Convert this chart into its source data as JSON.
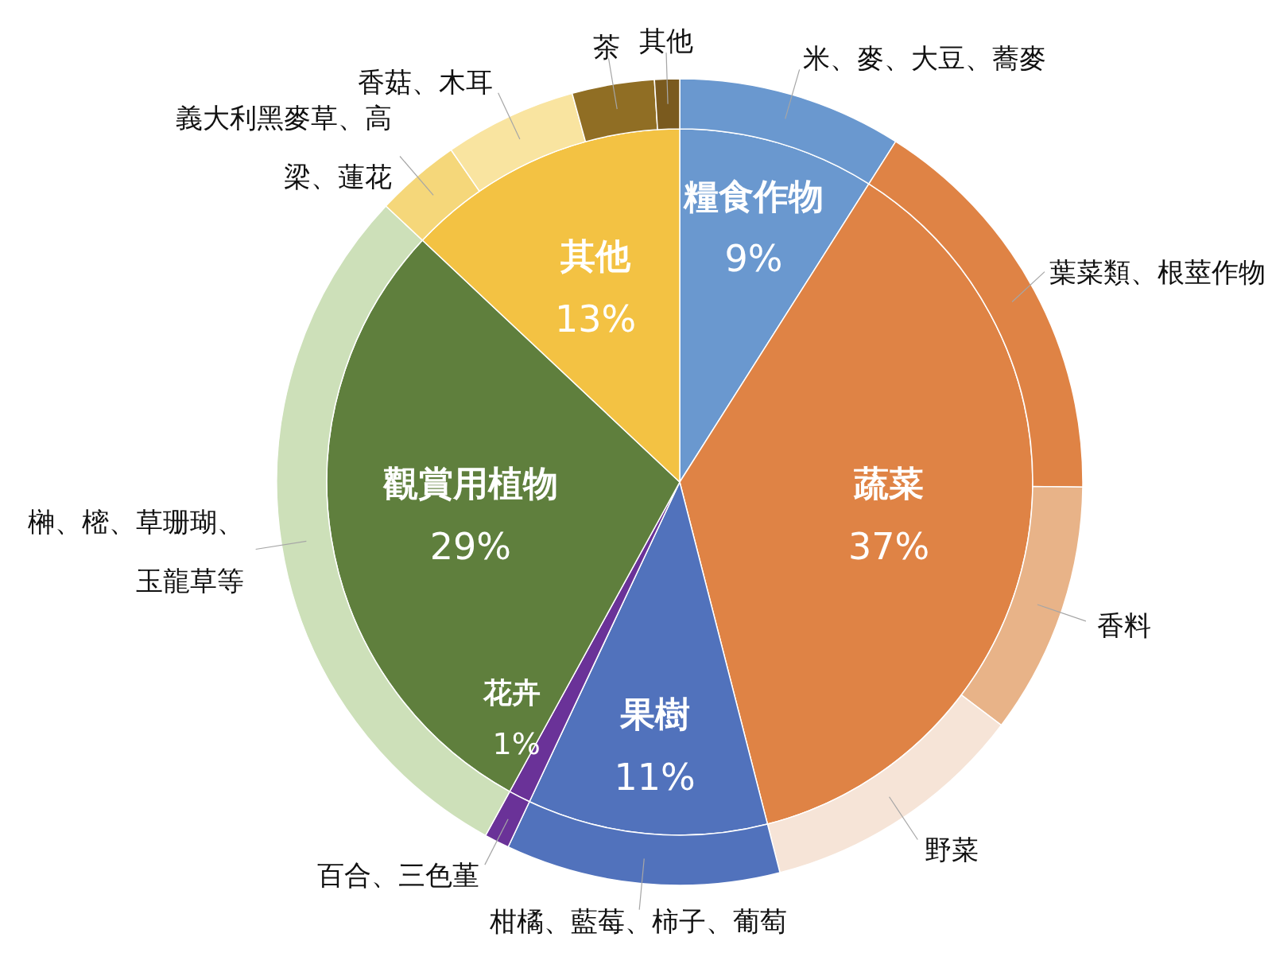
{
  "chart_data": [
    {
      "type": "pie",
      "categories": [
        "糧食作物",
        "蔬菜",
        "果樹",
        "花卉",
        "觀賞用植物",
        "其他"
      ],
      "values": [
        9,
        37,
        11,
        1,
        29,
        13
      ],
      "colors": [
        "#6a98cf",
        "#df8345",
        "#5172bc",
        "#6a3298",
        "#5f7f3d",
        "#f3c243"
      ],
      "value_labels": [
        "9%",
        "37%",
        "11%",
        "1%",
        "29%",
        "13%"
      ]
    },
    {
      "type": "donut",
      "categories": [
        "米、麥、大豆、蕎麥",
        "葉菜類、根莖作物",
        "香料",
        "野菜",
        "柑橘、藍莓、柿子、葡萄",
        "百合、三色堇",
        "榊、樒、草珊瑚、玉龍草等",
        "義大利黑麥草、高梁、蓮花",
        "香菇、木耳",
        "茶",
        "其他"
      ],
      "values": [
        9,
        16.2,
        10.1,
        10.7,
        11,
        1,
        29,
        3.4,
        5.3,
        3.3,
        1.0
      ],
      "colors": [
        "#6a98cf",
        "#df8345",
        "#e8b388",
        "#f6e4d7",
        "#5172bc",
        "#6a3298",
        "#cde0b9",
        "#f5d77a",
        "#f9e4a0",
        "#906e24",
        "#7a5a1e"
      ]
    }
  ]
}
